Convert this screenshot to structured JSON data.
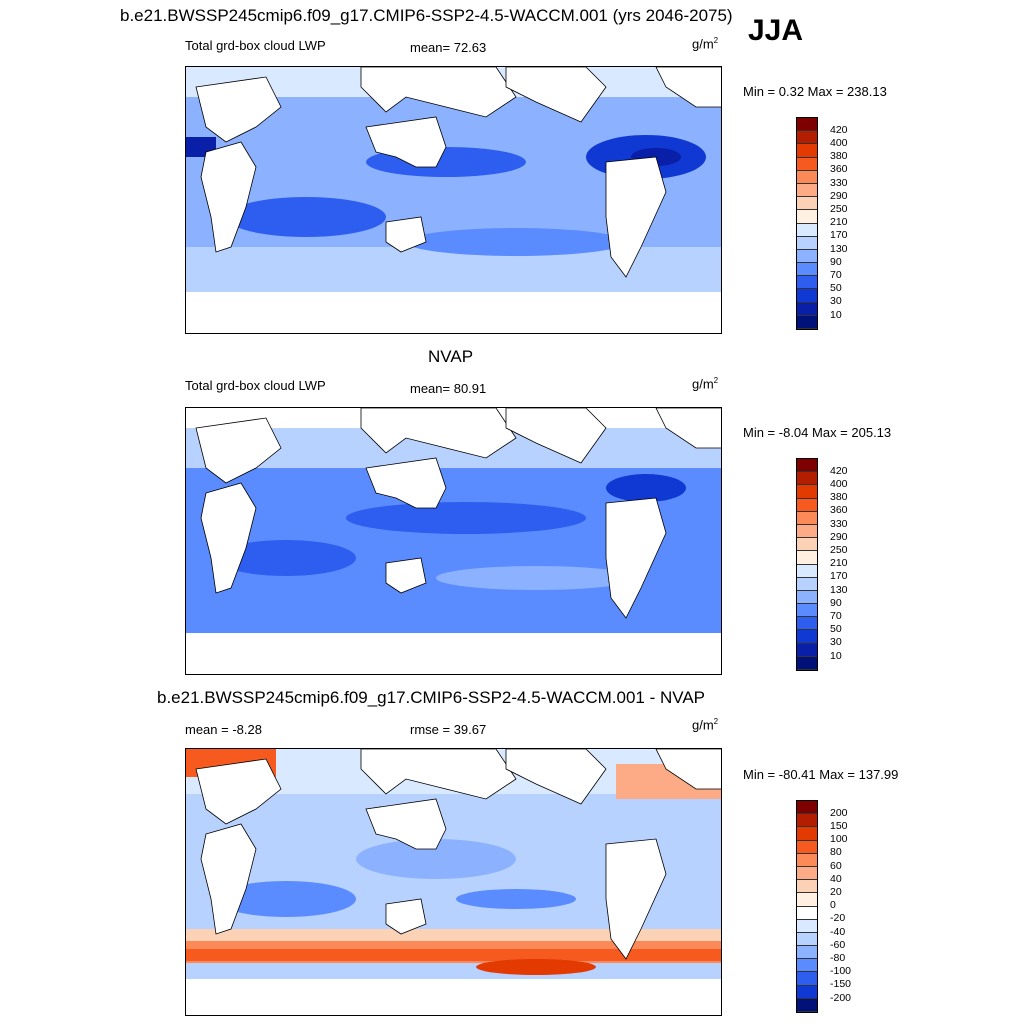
{
  "season": "JJA",
  "top_title": "b.e21.BWSSP245cmip6.f09_g17.CMIP6-SSP2-4.5-WACCM.001 (yrs 2046-2075)",
  "panels": [
    {
      "heading": "",
      "left_label": "Total grd-box cloud LWP",
      "center_label": "mean=  72.63",
      "unit_base": "g/m",
      "unit_exp": "2",
      "minmax": "Min =   0.32 Max = 238.13",
      "colorbar_ticks": [
        "420",
        "400",
        "380",
        "360",
        "330",
        "290",
        "250",
        "210",
        "170",
        "130",
        "90",
        "70",
        "50",
        "30",
        "10"
      ]
    },
    {
      "heading": "NVAP",
      "left_label": "Total grd-box cloud LWP",
      "center_label": "mean=  80.91",
      "unit_base": "g/m",
      "unit_exp": "2",
      "minmax": "Min =  -8.04 Max = 205.13",
      "colorbar_ticks": [
        "420",
        "400",
        "380",
        "360",
        "330",
        "290",
        "250",
        "210",
        "170",
        "130",
        "90",
        "70",
        "50",
        "30",
        "10"
      ]
    },
    {
      "heading": "b.e21.BWSSP245cmip6.f09_g17.CMIP6-SSP2-4.5-WACCM.001 - NVAP",
      "left_label": "mean =  -8.28",
      "center_label": "rmse =  39.67",
      "unit_base": "g/m",
      "unit_exp": "2",
      "minmax": "Min = -80.41 Max = 137.99",
      "colorbar_ticks": [
        "200",
        "150",
        "100",
        "80",
        "60",
        "40",
        "20",
        "0",
        "-20",
        "-40",
        "-60",
        "-80",
        "-100",
        "-150",
        "-200"
      ]
    }
  ],
  "colors": {
    "abs_scale": [
      "#7f0000",
      "#b31e00",
      "#e23a00",
      "#f75a1f",
      "#fc8a58",
      "#fcab86",
      "#fcd2b6",
      "#fff0e2",
      "#d9e9ff",
      "#b8d2ff",
      "#8cb2ff",
      "#5a8cff",
      "#2d5ef0",
      "#1038d2",
      "#0a1fa8",
      "#00127a"
    ],
    "diff_scale": [
      "#7f0000",
      "#b31e00",
      "#e23a00",
      "#f75a1f",
      "#fc8a58",
      "#fcab86",
      "#fcd2b6",
      "#fff0e2",
      "#ffffff",
      "#d9e9ff",
      "#b8d2ff",
      "#8cb2ff",
      "#5a8cff",
      "#2d5ef0",
      "#1038d2",
      "#00127a"
    ]
  }
}
